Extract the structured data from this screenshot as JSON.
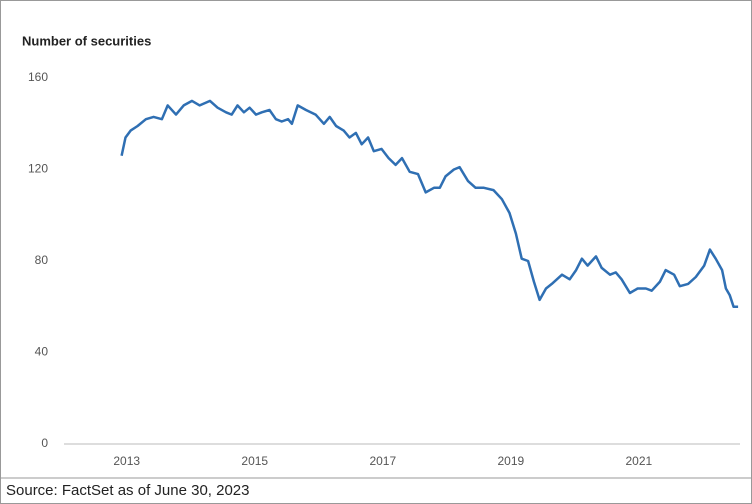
{
  "chart_data": {
    "type": "line",
    "title": "Number of securities",
    "source": "Source: FactSet as of June 30, 2023",
    "series": [
      {
        "name": "Number of securities",
        "color": "#2f6fb3",
        "x": [
          2012.92,
          2012.98,
          2013.06,
          2013.17,
          2013.3,
          2013.42,
          2013.55,
          2013.64,
          2013.77,
          2013.89,
          2014.02,
          2014.14,
          2014.3,
          2014.42,
          2014.55,
          2014.64,
          2014.73,
          2014.83,
          2014.92,
          2015.02,
          2015.11,
          2015.23,
          2015.33,
          2015.42,
          2015.52,
          2015.58,
          2015.67,
          2015.8,
          2015.95,
          2016.08,
          2016.17,
          2016.27,
          2016.39,
          2016.48,
          2016.58,
          2016.67,
          2016.77,
          2016.86,
          2016.98,
          2017.09,
          2017.2,
          2017.3,
          2017.42,
          2017.55,
          2017.67,
          2017.8,
          2017.89,
          2017.98,
          2018.11,
          2018.2,
          2018.33,
          2018.45,
          2018.58,
          2018.73,
          2018.86,
          2018.98,
          2019.08,
          2019.17,
          2019.27,
          2019.36,
          2019.45,
          2019.55,
          2019.64,
          2019.8,
          2019.92,
          2020.02,
          2020.11,
          2020.2,
          2020.33,
          2020.42,
          2020.55,
          2020.64,
          2020.73,
          2020.86,
          2020.98,
          2021.11,
          2021.2,
          2021.33,
          2021.42,
          2021.55,
          2021.64,
          2021.77,
          2021.89,
          2022.02,
          2022.11,
          2022.2,
          2022.3,
          2022.36,
          2022.42,
          2022.48,
          2022.55
        ],
        "values": [
          126,
          134,
          137,
          139,
          142,
          143,
          142,
          148,
          144,
          148,
          150,
          148,
          150,
          147,
          145,
          144,
          148,
          145,
          147,
          144,
          145,
          146,
          142,
          141,
          142,
          140,
          148,
          146,
          144,
          140,
          143,
          139,
          137,
          134,
          136,
          131,
          134,
          128,
          129,
          125,
          122,
          125,
          119,
          118,
          110,
          112,
          112,
          117,
          120,
          121,
          115,
          112,
          112,
          111,
          107,
          101,
          92,
          81,
          80,
          71,
          63,
          68,
          70,
          74,
          72,
          76,
          81,
          78,
          82,
          77,
          74,
          75,
          72,
          66,
          68,
          68,
          67,
          71,
          76,
          74,
          69,
          70,
          73,
          78,
          85,
          81,
          76,
          68,
          65,
          60,
          60
        ]
      }
    ],
    "xlim": [
      2012.02,
      2022.58
    ],
    "xticks": [
      2013,
      2015,
      2017,
      2019,
      2021
    ],
    "ylim": [
      0,
      160
    ],
    "yticks": [
      0,
      40,
      80,
      120,
      160
    ],
    "grid": false
  }
}
